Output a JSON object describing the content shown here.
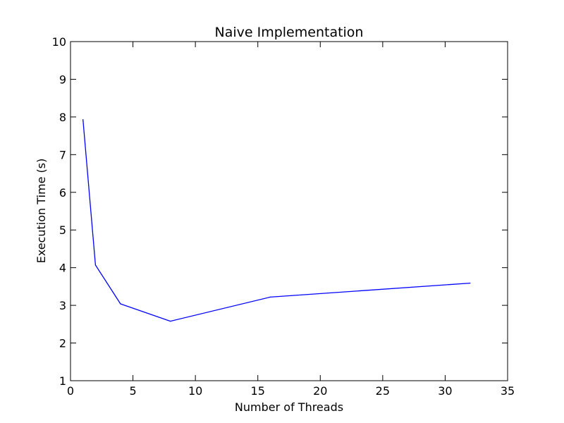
{
  "chart_data": {
    "type": "line",
    "title": "Naive Implementation",
    "xlabel": "Number of Threads",
    "ylabel": "Execution Time (s)",
    "xlim": [
      0,
      35
    ],
    "ylim": [
      1,
      10
    ],
    "xticks": [
      0,
      5,
      10,
      15,
      20,
      25,
      30,
      35
    ],
    "yticks": [
      1,
      2,
      3,
      4,
      5,
      6,
      7,
      8,
      9,
      10
    ],
    "grid": false,
    "series": [
      {
        "color": "#0000ff",
        "x": [
          1,
          2,
          4,
          8,
          16,
          32
        ],
        "y": [
          7.93,
          4.07,
          3.04,
          2.58,
          3.22,
          3.59
        ]
      }
    ]
  }
}
